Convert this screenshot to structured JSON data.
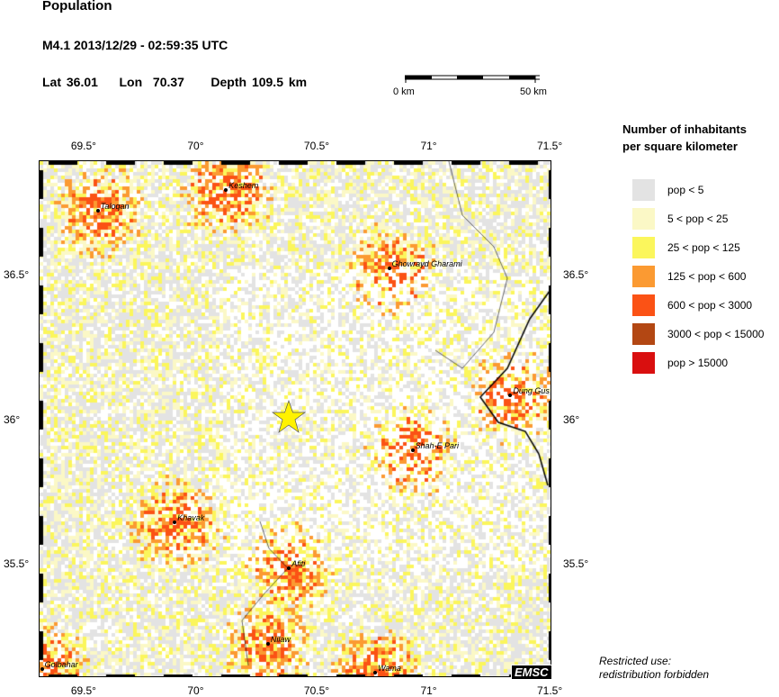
{
  "header": {
    "title": "Population",
    "event": "M4.1  2013/12/29 - 02:59:35 UTC",
    "location": "Lat 36.01    Lon  70.37     Depth 109.5 km"
  },
  "scale_bar": {
    "start_label": "0 km",
    "end_label": "50 km"
  },
  "map": {
    "lon_range": [
      69.3,
      71.5
    ],
    "lat_range": [
      35.11,
      36.9
    ],
    "lon_ticks": [
      "69.5°",
      "70°",
      "70.5°",
      "71°",
      "71.5°"
    ],
    "lat_ticks": [
      "36.5°",
      "36°",
      "35.5°"
    ],
    "epicenter": {
      "lat": 36.01,
      "lon": 70.37,
      "marker": "yellow-star"
    },
    "cities": [
      {
        "name": "Taloqan",
        "lat": 36.73,
        "lon": 69.55
      },
      {
        "name": "Keshem",
        "lat": 36.8,
        "lon": 70.1
      },
      {
        "name": "Ghowrayd Gharami",
        "lat": 36.53,
        "lon": 70.8
      },
      {
        "name": "Dung Gus",
        "lat": 36.09,
        "lon": 71.32
      },
      {
        "name": "Shah-E Pari",
        "lat": 35.9,
        "lon": 70.9
      },
      {
        "name": "Khavak",
        "lat": 35.65,
        "lon": 69.88
      },
      {
        "name": "Afiti",
        "lat": 35.49,
        "lon": 70.37
      },
      {
        "name": "Nilaw",
        "lat": 35.23,
        "lon": 70.28
      },
      {
        "name": "Wama",
        "lat": 35.13,
        "lon": 70.74
      },
      {
        "name": "Golbahar",
        "lat": 35.14,
        "lon": 69.31
      }
    ]
  },
  "legend": {
    "title_line1": "Number of inhabitants",
    "title_line2": "per square kilometer",
    "items": [
      {
        "label": "pop < 5",
        "color": "#e3e3e3"
      },
      {
        "label": "5 < pop < 25",
        "color": "#fbf8c6"
      },
      {
        "label": "25 < pop < 125",
        "color": "#fbf65c"
      },
      {
        "label": "125 < pop < 600",
        "color": "#fb9a32"
      },
      {
        "label": "600 < pop < 3000",
        "color": "#fb5215"
      },
      {
        "label": "3000 < pop < 15000",
        "color": "#b34713"
      },
      {
        "label": "pop > 15000",
        "color": "#d90f0f"
      }
    ]
  },
  "footer": {
    "restricted_line1": "Restricted use:",
    "restricted_line2": "redistribution forbidden",
    "logo": "EMSC"
  }
}
